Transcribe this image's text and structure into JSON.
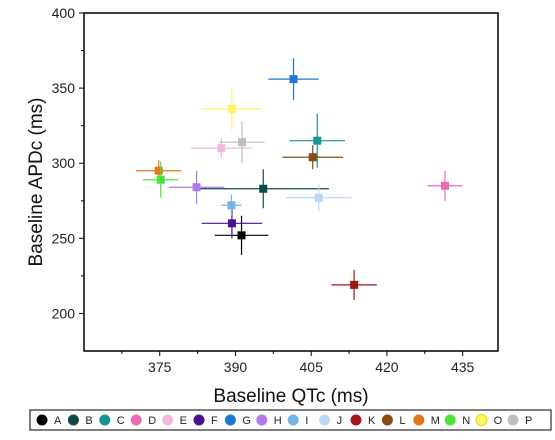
{
  "chart_data": {
    "type": "scatter",
    "title": "",
    "xlabel": "Baseline QTc (ms)",
    "ylabel": "Baseline APDc (ms)",
    "xlim": [
      360,
      442
    ],
    "ylim": [
      175,
      400
    ],
    "xticks": [
      375,
      390,
      405,
      420,
      435
    ],
    "yticks": [
      200,
      250,
      300,
      350,
      400
    ],
    "grid": false,
    "legend_position": "bottom",
    "series": [
      {
        "name": "A",
        "color": "#000000",
        "x": 391.2,
        "y": 252,
        "x_err": 5.3,
        "y_err": 13
      },
      {
        "name": "B",
        "color": "#0e4a4a",
        "x": 395.5,
        "y": 283,
        "x_err": 13,
        "y_err": 13
      },
      {
        "name": "C",
        "color": "#179494",
        "x": 406.2,
        "y": 315,
        "x_err": 5.5,
        "y_err": 18
      },
      {
        "name": "D",
        "color": "#ec69b5",
        "x": 431.5,
        "y": 285,
        "x_err": 3.5,
        "y_err": 10
      },
      {
        "name": "E",
        "color": "#f4b8dc",
        "x": 387.2,
        "y": 310,
        "x_err": 6,
        "y_err": 7
      },
      {
        "name": "F",
        "color": "#4b0e8e",
        "x": 389.3,
        "y": 260,
        "x_err": 6,
        "y_err": 10
      },
      {
        "name": "G",
        "color": "#1f77d4",
        "x": 401.5,
        "y": 356,
        "x_err": 5,
        "y_err": 14
      },
      {
        "name": "H",
        "color": "#b07be8",
        "x": 382.3,
        "y": 284,
        "x_err": 5.5,
        "y_err": 11
      },
      {
        "name": "I",
        "color": "#7ab4e6",
        "x": 389.2,
        "y": 272,
        "x_err": 2,
        "y_err": 7
      },
      {
        "name": "J",
        "color": "#bdd8f4",
        "x": 406.5,
        "y": 277,
        "x_err": 6.5,
        "y_err": 9
      },
      {
        "name": "K",
        "color": "#a01717",
        "x": 413.5,
        "y": 219,
        "x_err": 4.5,
        "y_err": 10
      },
      {
        "name": "L",
        "color": "#8b4a12",
        "x": 405.3,
        "y": 304,
        "x_err": 6,
        "y_err": 8
      },
      {
        "name": "M",
        "color": "#e0771a",
        "x": 374.8,
        "y": 295,
        "x_err": 4.5,
        "y_err": 7
      },
      {
        "name": "N",
        "color": "#4fe33a",
        "x": 375.2,
        "y": 289,
        "x_err": 3.5,
        "y_err": 12
      },
      {
        "name": "O",
        "color": "#fff36a",
        "x": 389.3,
        "y": 336,
        "x_err": 6,
        "y_err": 14
      },
      {
        "name": "P",
        "color": "#bdbdbd",
        "x": 391.3,
        "y": 314,
        "x_err": 4.5,
        "y_err": 14
      }
    ]
  }
}
